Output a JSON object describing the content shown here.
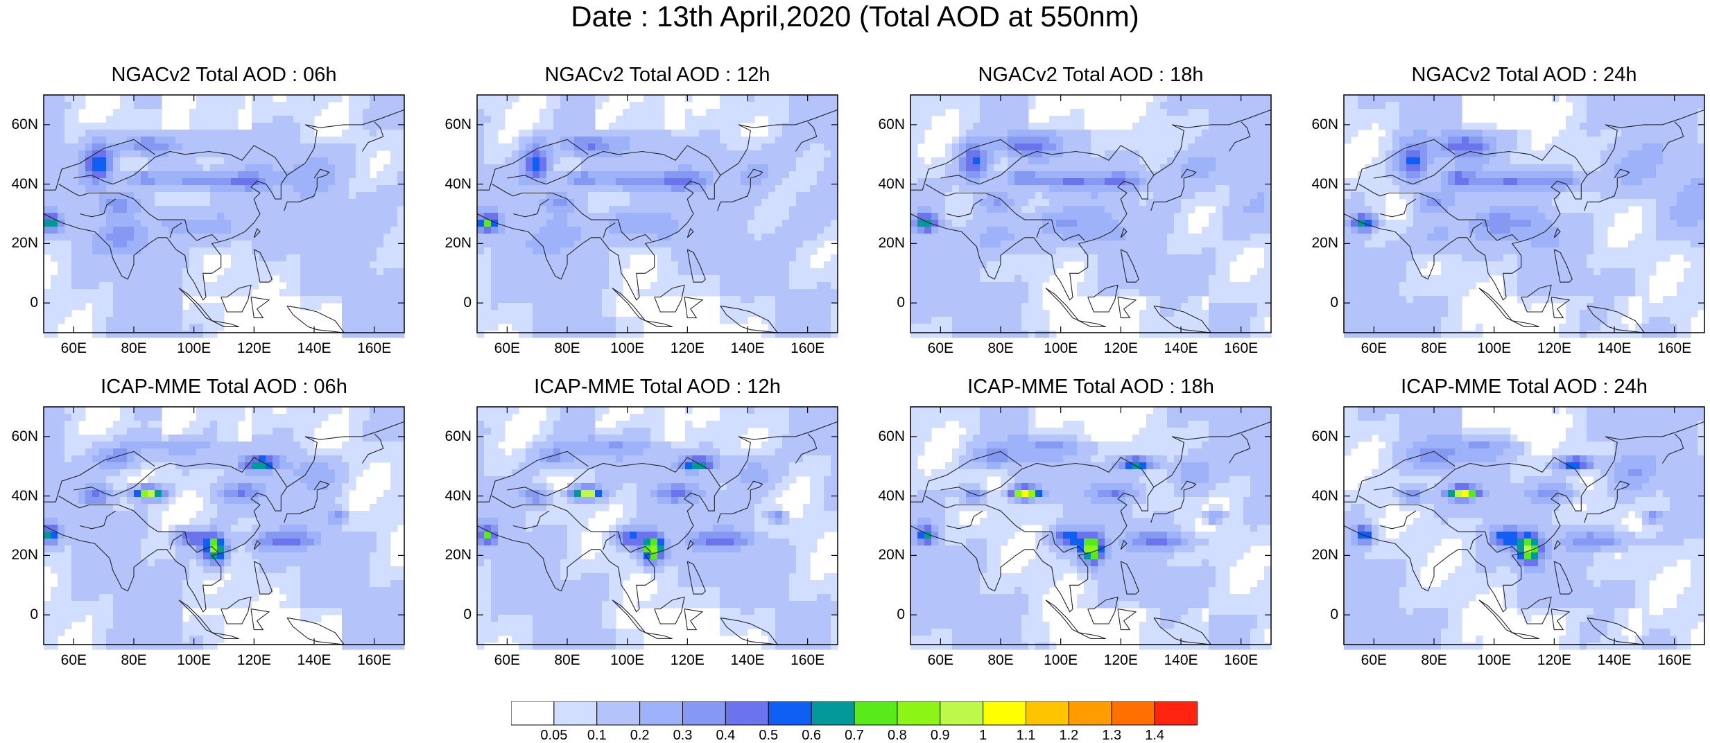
{
  "title": "Date : 13th April,2020 (Total AOD at 550nm)",
  "axes": {
    "x_ticks": [
      "60E",
      "80E",
      "100E",
      "120E",
      "140E",
      "160E"
    ],
    "y_ticks": [
      "60N",
      "40N",
      "20N",
      "0"
    ],
    "x_tick_values": [
      60,
      80,
      100,
      120,
      140,
      160
    ],
    "y_tick_values": [
      60,
      40,
      20,
      0
    ],
    "lon_range": [
      50,
      170
    ],
    "lat_range": [
      -10,
      70
    ]
  },
  "panels": [
    {
      "title": "NGACv2 Total AOD : 06h",
      "model": "NGACv2",
      "hour": "06h"
    },
    {
      "title": "NGACv2 Total AOD : 12h",
      "model": "NGACv2",
      "hour": "12h"
    },
    {
      "title": "NGACv2 Total AOD : 18h",
      "model": "NGACv2",
      "hour": "18h"
    },
    {
      "title": "NGACv2 Total AOD : 24h",
      "model": "NGACv2",
      "hour": "24h"
    },
    {
      "title": "ICAP-MME Total AOD : 06h",
      "model": "ICAP-MME",
      "hour": "06h"
    },
    {
      "title": "ICAP-MME Total AOD : 12h",
      "model": "ICAP-MME",
      "hour": "12h"
    },
    {
      "title": "ICAP-MME Total AOD : 18h",
      "model": "ICAP-MME",
      "hour": "18h"
    },
    {
      "title": "ICAP-MME Total AOD : 24h",
      "model": "ICAP-MME",
      "hour": "24h"
    }
  ],
  "colorbar": {
    "labels": [
      "0.05",
      "0.1",
      "0.2",
      "0.3",
      "0.4",
      "0.5",
      "0.6",
      "0.7",
      "0.8",
      "0.9",
      "1",
      "1.1",
      "1.2",
      "1.3",
      "1.4"
    ],
    "colors": [
      "#ffffff",
      "#d2deff",
      "#b4c4fb",
      "#9db2f8",
      "#8599f3",
      "#6b73ed",
      "#0f5ff2",
      "#03989a",
      "#58ea1b",
      "#8cf515",
      "#bef94a",
      "#ffff00",
      "#ffc400",
      "#ff9c00",
      "#ff7000",
      "#ff2410"
    ]
  }
}
